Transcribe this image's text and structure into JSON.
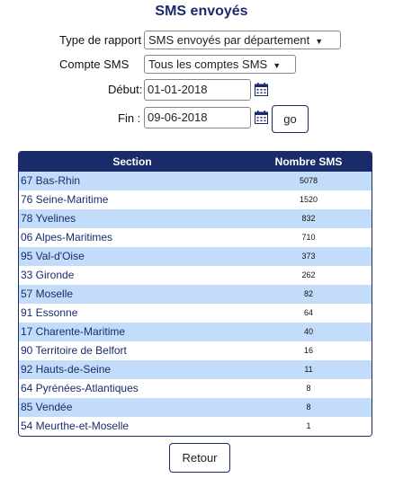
{
  "title": "SMS envoyés",
  "form": {
    "type_label": "Type de rapport",
    "type_value": "SMS envoyés par département",
    "compte_label": "Compte SMS",
    "compte_value": "Tous les comptes SMS",
    "debut_label": "Début:",
    "debut_value": "01-01-2018",
    "fin_label": "Fin :",
    "fin_value": "09-06-2018",
    "go_label": "go"
  },
  "table": {
    "headers": [
      "Section",
      "Nombre SMS"
    ],
    "rows": [
      {
        "section": "67 Bas-Rhin",
        "count": "5078"
      },
      {
        "section": "76 Seine-Maritime",
        "count": "1520"
      },
      {
        "section": "78 Yvelines",
        "count": "832"
      },
      {
        "section": "06 Alpes-Maritimes",
        "count": "710"
      },
      {
        "section": "95 Val-d'Oise",
        "count": "373"
      },
      {
        "section": "33 Gironde",
        "count": "262"
      },
      {
        "section": "57 Moselle",
        "count": "82"
      },
      {
        "section": "91 Essonne",
        "count": "64"
      },
      {
        "section": "17 Charente-Maritime",
        "count": "40"
      },
      {
        "section": "90 Territoire de Belfort",
        "count": "16"
      },
      {
        "section": "92 Hauts-de-Seine",
        "count": "11"
      },
      {
        "section": "64 Pyrénées-Atlantiques",
        "count": "8"
      },
      {
        "section": "85 Vendée",
        "count": "8"
      },
      {
        "section": "54 Meurthe-et-Moselle",
        "count": "1"
      }
    ]
  },
  "back_label": "Retour",
  "icons": {
    "calendar": "calendar-icon",
    "dropdown": "chevron-down-icon"
  },
  "colors": {
    "accent": "#1a2b6b",
    "row_alt": "#c2dcfa"
  }
}
